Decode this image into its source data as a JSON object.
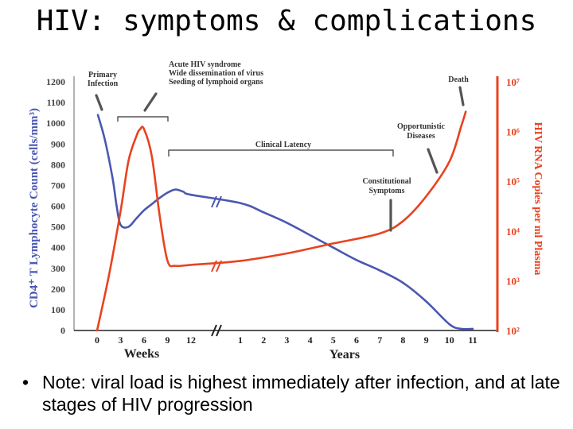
{
  "slide": {
    "title": "HIV: symptoms & complications",
    "bullet": "•",
    "note": "Note: viral load is highest immediately after infection, and at late stages of HIV progression"
  },
  "colors": {
    "cd4": "#4a58b0",
    "rna": "#e8431f",
    "axis": "#222222",
    "text": "#333333"
  },
  "chart_data": {
    "type": "line",
    "y_left_label": "CD4⁺ T Lymphocyte Count (cells/mm³)",
    "y_right_label": "HIV RNA Copies per ml Plasma",
    "weeks_label": "Weeks",
    "years_label": "Years",
    "y_left_ticks": [
      1200,
      1100,
      1000,
      900,
      800,
      700,
      600,
      500,
      400,
      300,
      200,
      100,
      0
    ],
    "y_left_range": [
      0,
      1200
    ],
    "y_right_ticks": [
      {
        "label": "10⁷",
        "value": 7
      },
      {
        "label": "10⁶",
        "value": 6
      },
      {
        "label": "10⁵",
        "value": 5
      },
      {
        "label": "10⁴",
        "value": 4
      },
      {
        "label": "10³",
        "value": 3
      },
      {
        "label": "10²",
        "value": 2
      }
    ],
    "y_right_range_log10": [
      2,
      7
    ],
    "x_week_ticks": [
      0,
      3,
      6,
      9,
      12
    ],
    "x_year_ticks": [
      1,
      2,
      3,
      4,
      5,
      6,
      7,
      8,
      9,
      10,
      11
    ],
    "series": [
      {
        "key": "cd4",
        "points": [
          [
            "w",
            0.1,
            1040
          ],
          [
            "w",
            1,
            920
          ],
          [
            "w",
            2,
            730
          ],
          [
            "w",
            2.5,
            600
          ],
          [
            "w",
            3,
            510
          ],
          [
            "w",
            4,
            500
          ],
          [
            "w",
            5,
            540
          ],
          [
            "w",
            6,
            580
          ],
          [
            "w",
            7,
            610
          ],
          [
            "w",
            8,
            640
          ],
          [
            "w",
            9,
            665
          ],
          [
            "w",
            10,
            680
          ],
          [
            "w",
            11,
            670
          ],
          [
            "w",
            12,
            655
          ],
          [
            "y",
            1,
            615
          ],
          [
            "y",
            2,
            570
          ],
          [
            "y",
            3,
            520
          ],
          [
            "y",
            4,
            460
          ],
          [
            "y",
            5,
            400
          ],
          [
            "y",
            6,
            340
          ],
          [
            "y",
            7,
            290
          ],
          [
            "y",
            8,
            230
          ],
          [
            "y",
            9,
            140
          ],
          [
            "y",
            10,
            30
          ],
          [
            "y",
            10.5,
            8
          ],
          [
            "y",
            11,
            8
          ]
        ]
      },
      {
        "key": "rna",
        "points": [
          [
            "w",
            0,
            2
          ],
          [
            "w",
            1.5,
            3.1
          ],
          [
            "w",
            3,
            4.4
          ],
          [
            "w",
            4,
            5.4
          ],
          [
            "w",
            5,
            5.9
          ],
          [
            "w",
            5.5,
            6.05
          ],
          [
            "w",
            6,
            6.05
          ],
          [
            "w",
            7,
            5.5
          ],
          [
            "w",
            8,
            4.3
          ],
          [
            "w",
            9,
            3.4
          ],
          [
            "w",
            10,
            3.3
          ],
          [
            "w",
            12,
            3.32
          ],
          [
            "y",
            1,
            3.4
          ],
          [
            "y",
            3,
            3.55
          ],
          [
            "y",
            5,
            3.75
          ],
          [
            "y",
            7,
            3.95
          ],
          [
            "y",
            8,
            4.2
          ],
          [
            "y",
            9,
            4.7
          ],
          [
            "y",
            10,
            5.4
          ],
          [
            "y",
            10.5,
            6.1
          ],
          [
            "y",
            10.7,
            6.4
          ]
        ]
      }
    ],
    "annotations": [
      {
        "key": "primary",
        "lines": [
          "Primary",
          "Infection"
        ]
      },
      {
        "key": "acute",
        "lines": [
          "Acute HIV syndrome",
          "Wide dissemination of virus",
          "Seeding of lymphoid organs"
        ]
      },
      {
        "key": "latency",
        "lines": [
          "Clinical Latency"
        ]
      },
      {
        "key": "constitutional",
        "lines": [
          "Constitutional",
          "Symptoms"
        ]
      },
      {
        "key": "opportunistic",
        "lines": [
          "Opportunistic",
          "Diseases"
        ]
      },
      {
        "key": "death",
        "lines": [
          "Death"
        ]
      }
    ]
  }
}
